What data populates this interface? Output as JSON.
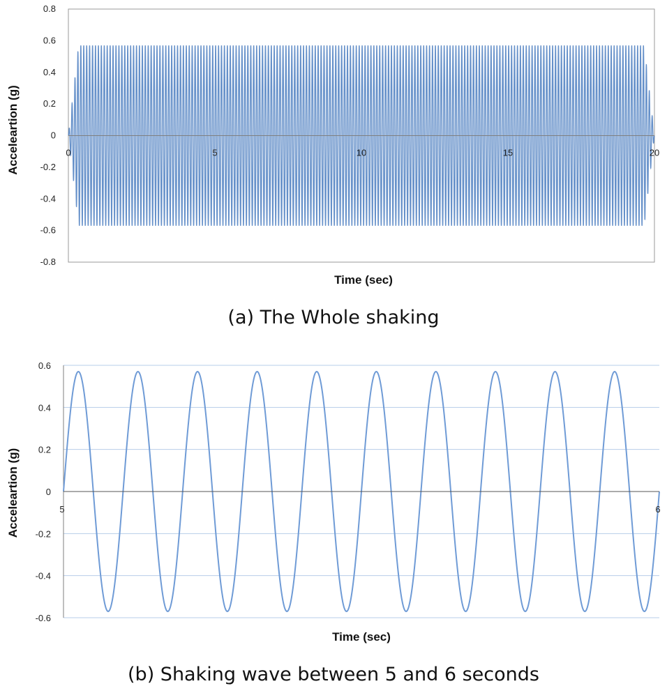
{
  "chart_data": [
    {
      "type": "line",
      "caption": "(a) The Whole shaking",
      "xlabel": "Time (sec)",
      "ylabel": "Acceleartion (g)",
      "xlim": [
        0,
        20
      ],
      "ylim": [
        -0.8,
        0.8
      ],
      "x_ticks": [
        "0",
        "5",
        "10",
        "15",
        "20"
      ],
      "y_ticks": [
        "0.8",
        "0.6",
        "0.4",
        "0.2",
        "0",
        "-0.2",
        "-0.4",
        "-0.6",
        "-0.8"
      ],
      "grid": false,
      "series": [
        {
          "frequency_hz": 10,
          "amplitude_g": 0.57,
          "ramp_up_end_s": 0.35,
          "ramp_down_start_s": 19.65,
          "x_start": 0,
          "x_end": 20
        }
      ]
    },
    {
      "type": "line",
      "caption": "(b) Shaking wave between 5 and 6 seconds",
      "xlabel": "Time (sec)",
      "ylabel": "Acceleartion (g)",
      "xlim": [
        5,
        6
      ],
      "ylim": [
        -0.6,
        0.6
      ],
      "x_ticks": [
        "5",
        "6"
      ],
      "y_ticks": [
        "0.6",
        "0.4",
        "0.2",
        "0",
        "-0.2",
        "-0.4",
        "-0.6"
      ],
      "grid": true,
      "series": [
        {
          "frequency_hz": 10,
          "amplitude_g": 0.57,
          "x_start": 5,
          "x_end": 6
        }
      ]
    }
  ],
  "colors": {
    "series_a": "#4a7cc0",
    "series_b": "#6f9bd6",
    "grid": "#b7cde8",
    "axis": "#7f7f7f"
  }
}
